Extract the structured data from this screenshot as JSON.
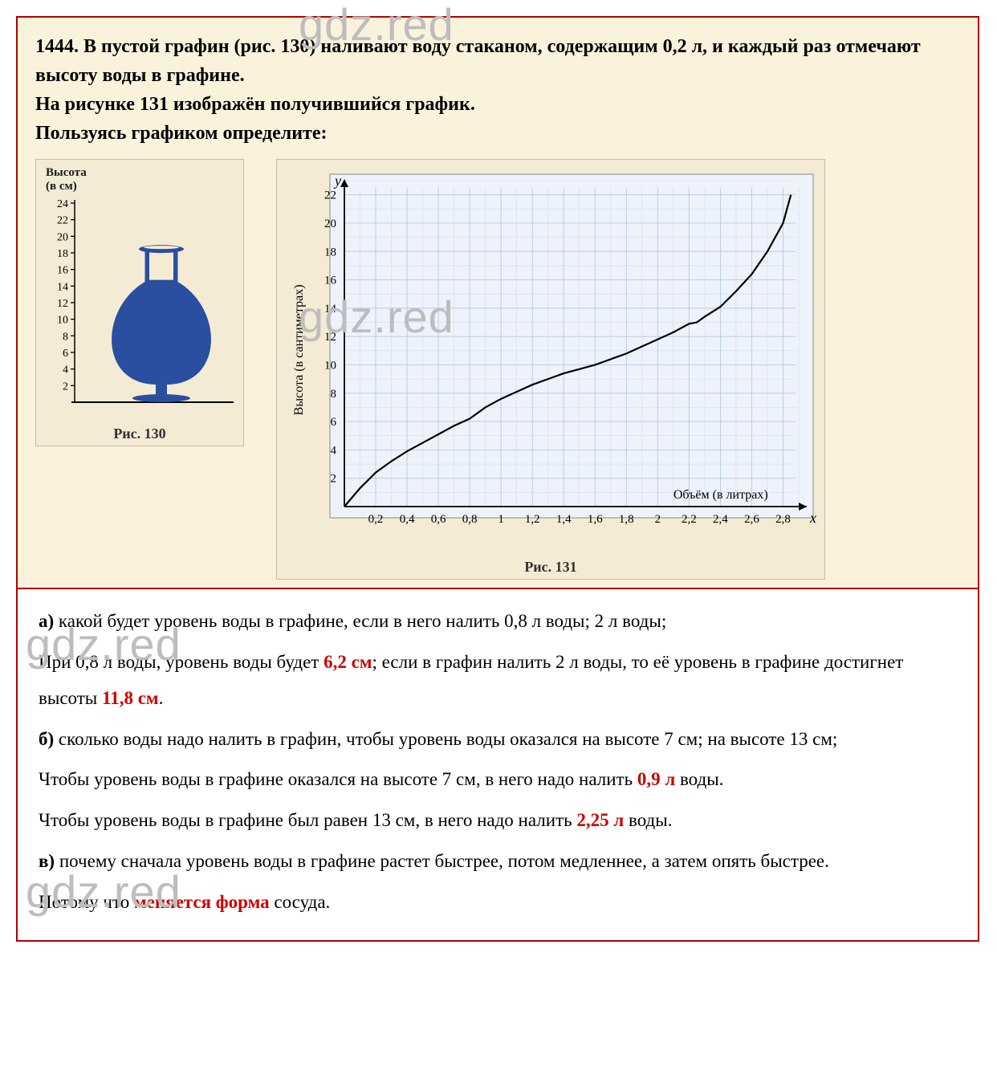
{
  "problem": {
    "number": "1444.",
    "text_line1": "В пустой графин (рис. 130) наливают воду стаканом, содержащим 0,2 л, и каждый раз отмечают высоту воды в графине.",
    "text_line2": "На рисунке 131 изображён получившийся график.",
    "text_line3": "Пользуясь графиком определите:"
  },
  "fig130": {
    "caption": "Рис. 130",
    "y_label_top": "Высота",
    "y_label_bottom": "(в см)",
    "y_ticks": [
      24,
      22,
      20,
      18,
      16,
      14,
      12,
      10,
      8,
      6,
      4,
      2
    ],
    "vase_color": "#2a4ea0",
    "vase_neck_fill": "#f4ebd4",
    "bg": "#f4ebd4",
    "axis_color": "#000000",
    "tick_color": "#000000"
  },
  "fig131": {
    "caption": "Рис. 131",
    "y_axis_letter": "y",
    "x_axis_letter": "x",
    "y_label": "Высота (в сантиметрах)",
    "x_label": "Объём (в литрах)",
    "x_ticks": [
      "0,2",
      "0,4",
      "0,6",
      "0,8",
      "1",
      "1,2",
      "1,4",
      "1,6",
      "1,8",
      "2",
      "2,2",
      "2,4",
      "2,6",
      "2,8"
    ],
    "y_ticks": [
      2,
      4,
      6,
      8,
      10,
      12,
      14,
      16,
      18,
      20,
      22
    ],
    "x_range": [
      0,
      2.9
    ],
    "y_range": [
      0,
      23
    ],
    "grid_color": "#b7c8e6",
    "grid_minor_color": "#d0dbf0",
    "line_color": "#000000",
    "line_width": 2.2,
    "bg": "#eef3fb",
    "curve": [
      [
        0.0,
        0.0
      ],
      [
        0.1,
        1.3
      ],
      [
        0.2,
        2.4
      ],
      [
        0.3,
        3.2
      ],
      [
        0.4,
        3.9
      ],
      [
        0.5,
        4.5
      ],
      [
        0.6,
        5.1
      ],
      [
        0.7,
        5.7
      ],
      [
        0.8,
        6.2
      ],
      [
        0.9,
        7.0
      ],
      [
        1.0,
        7.6
      ],
      [
        1.1,
        8.1
      ],
      [
        1.2,
        8.6
      ],
      [
        1.3,
        9.0
      ],
      [
        1.4,
        9.4
      ],
      [
        1.5,
        9.7
      ],
      [
        1.6,
        10.0
      ],
      [
        1.7,
        10.4
      ],
      [
        1.8,
        10.8
      ],
      [
        1.9,
        11.3
      ],
      [
        2.0,
        11.8
      ],
      [
        2.1,
        12.3
      ],
      [
        2.2,
        12.9
      ],
      [
        2.25,
        13.0
      ],
      [
        2.3,
        13.4
      ],
      [
        2.4,
        14.1
      ],
      [
        2.5,
        15.2
      ],
      [
        2.6,
        16.4
      ],
      [
        2.7,
        18.0
      ],
      [
        2.8,
        20.0
      ],
      [
        2.85,
        22.0
      ]
    ]
  },
  "answers": {
    "a_q": "какой будет уровень воды в графине, если в него налить 0,8 л воды; 2 л воды;",
    "a_ans_p1": "При 0,8 л воды,  уровень воды будет ",
    "a_ans_v1": "6,2 см",
    "a_ans_p2": "; если в графин налить 2 л воды, то её уровень в графине достигнет высоты ",
    "a_ans_v2": "11,8 см",
    "a_ans_p3": ".",
    "b_q": "сколько воды надо налить в графин, чтобы уровень воды оказался на высоте 7 см; на высоте 13 см;",
    "b_ans1_p1": "Чтобы уровень воды в графине оказался на высоте 7 см, в него надо налить ",
    "b_ans1_v": "0,9 л",
    "b_ans1_p2": " воды.",
    "b_ans2_p1": "Чтобы уровень воды в графине был равен 13 см, в него надо налить ",
    "b_ans2_v": "2,25 л",
    "b_ans2_p2": " воды.",
    "c_q": "почему сначала уровень воды в графине растет быстрее, потом медленнее, а затем опять быстрее.",
    "c_ans_p1": "Потому что ",
    "c_ans_v": "меняется форма",
    "c_ans_p2": " сосуда."
  },
  "labels": {
    "a": "а)",
    "b": "б)",
    "v": "в)"
  },
  "watermark": "gdz.red"
}
